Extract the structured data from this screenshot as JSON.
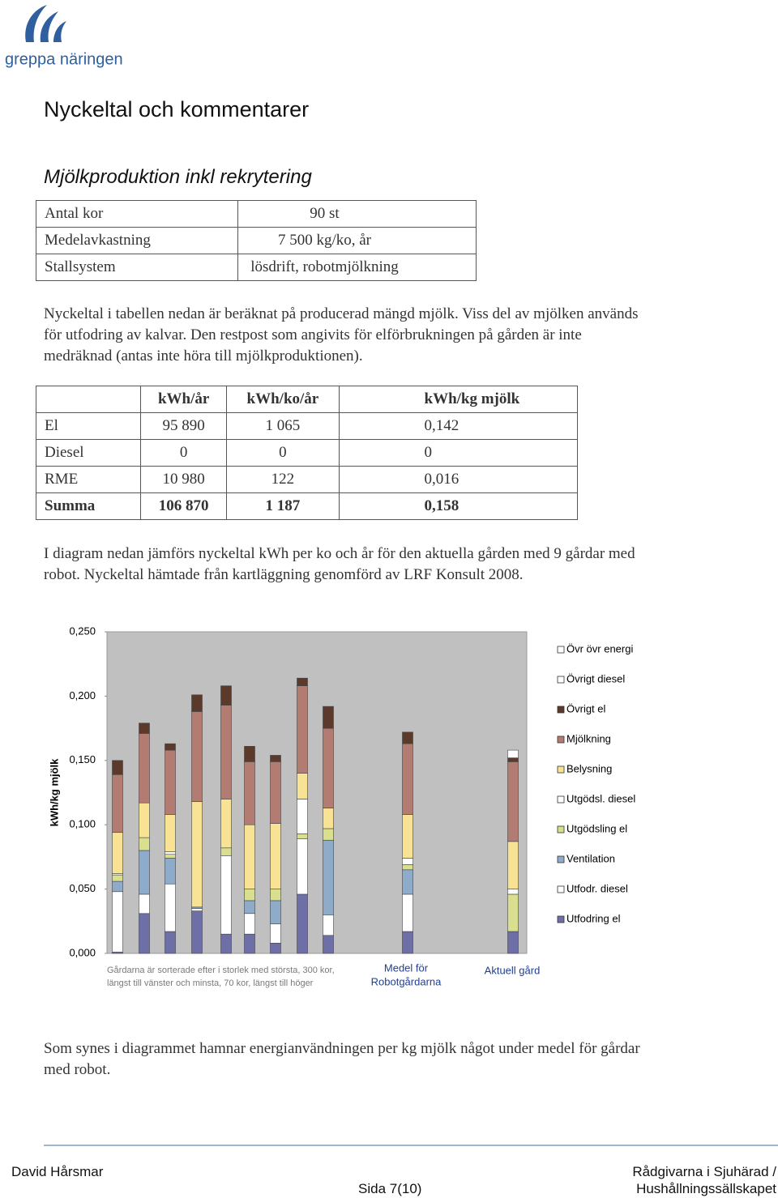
{
  "header": {
    "logo_text": "greppa näringen"
  },
  "title": "Nyckeltal och kommentarer",
  "subtitle": "Mjölkproduktion inkl rekrytering",
  "farm_table": {
    "rows": [
      [
        "Antal kor",
        "90 st"
      ],
      [
        "Medelavkastning",
        "7 500 kg/ko, år"
      ],
      [
        "Stallsystem",
        "lösdrift, robotmjölkning"
      ]
    ]
  },
  "paragraph_1": [
    "Nyckeltal i tabellen nedan är beräknat på producerad mängd mjölk. Viss del av mjölken används",
    "för utfodring av kalvar. Den restpost som angivits för elförbrukningen på gården är inte",
    "medräknad (antas inte höra till mjölkproduktionen)."
  ],
  "energy_table": {
    "header": [
      "kWh/år",
      "kWh/ko/år",
      "kWh/kg mjölk"
    ],
    "rows": [
      [
        "El",
        "95 890",
        "1 065",
        "0,142"
      ],
      [
        "Diesel",
        "0",
        "0",
        "0"
      ],
      [
        "RME",
        "10 980",
        "122",
        "0,016"
      ],
      [
        "Summa",
        "106 870",
        "1 187",
        "0,158"
      ]
    ]
  },
  "paragraph_2": [
    "I diagram nedan jämförs nyckeltal kWh per ko och år för den aktuella gården med 9 gårdar med",
    "robot. Nyckeltal hämtade från kartläggning genomförd av LRF Konsult 2008."
  ],
  "chart_data": {
    "type": "stacked_bar",
    "y_label": "kWh/kg mjölk",
    "categories": [
      null,
      null,
      null,
      null,
      null,
      null,
      null,
      null,
      null,
      null,
      null
    ],
    "ylim": [
      0,
      0.25
    ],
    "yticks": [
      {
        "value": 0,
        "label": "0,000"
      },
      {
        "value": 0.05,
        "label": "0,050"
      },
      {
        "value": 0.1,
        "label": "0,100"
      },
      {
        "value": 0.15,
        "label": "0,150"
      },
      {
        "value": 0.2,
        "label": "0,200"
      },
      {
        "value": 0.25,
        "label": "0,250"
      }
    ],
    "grid": false,
    "legend": "right",
    "series": [
      {
        "name": "Utfodring el",
        "color": "#6d6fa6",
        "values": [
          0.001,
          0.031,
          0.017,
          0.033,
          0.015,
          0.015,
          0.008,
          0.046,
          0.014,
          0.017,
          0.017
        ]
      },
      {
        "name": "Utfodr. diesel",
        "color": "#ffffff",
        "values": [
          0.047,
          0.015,
          0.037,
          0.002,
          0.061,
          0.016,
          0.015,
          0.043,
          0.016,
          0.029,
          0
        ]
      },
      {
        "name": "Ventilation",
        "color": "#8eabc9",
        "values": [
          0.008,
          0.034,
          0.02,
          0.001,
          0,
          0.01,
          0.018,
          0,
          0.058,
          0.019,
          0
        ]
      },
      {
        "name": "Utgödsling el",
        "color": "#d9df8e",
        "values": [
          0.005,
          0.01,
          0.003,
          0,
          0.006,
          0.009,
          0.009,
          0.004,
          0.009,
          0.004,
          0.029
        ]
      },
      {
        "name": "Utgödsl. diesel",
        "color": "#ffffff",
        "values": [
          0.001,
          0,
          0.002,
          0,
          0,
          0,
          0,
          0.027,
          0,
          0.005,
          0.004
        ]
      },
      {
        "name": "Belysning",
        "color": "#f8e394",
        "values": [
          0.032,
          0.027,
          0.029,
          0.082,
          0.038,
          0.05,
          0.051,
          0.02,
          0.016,
          0.034,
          0.037
        ]
      },
      {
        "name": "Mjölkning",
        "color": "#b27c72",
        "values": [
          0.045,
          0.054,
          0.05,
          0.07,
          0.073,
          0.049,
          0.048,
          0.068,
          0.062,
          0.055,
          0.062
        ]
      },
      {
        "name": "Övrigt el",
        "color": "#5b3a2c",
        "values": [
          0.011,
          0.008,
          0.005,
          0.013,
          0.015,
          0.012,
          0.005,
          0.006,
          0.017,
          0.009,
          0.003
        ]
      },
      {
        "name": "Övrigt diesel",
        "color": "#ffffff",
        "values": [
          0,
          0,
          0,
          0,
          0,
          0,
          0,
          0,
          0,
          0,
          0.006
        ]
      },
      {
        "name": "Övr övr energi",
        "color": "#ffffff",
        "values": [
          0,
          0,
          0,
          0,
          0,
          0,
          0,
          0,
          0,
          0,
          0
        ]
      }
    ],
    "annotations": [
      [
        "Gårdarna är sorterade efter i storlek med största, 300 kor,",
        "längst till vänster och minsta, 70  kor, längst till höger"
      ],
      [
        "Medel för",
        "Robotgårdarna"
      ],
      [
        "Aktuell gård"
      ]
    ]
  },
  "paragraph_3": [
    "Som synes i diagrammet hamnar energianvändningen per kg mjölk något under medel för gårdar",
    "med robot."
  ],
  "footer": {
    "author": "David Hårsmar",
    "page": "Sida 7(10)",
    "org": [
      "Rådgivarna i Sjuhärad /",
      "Hushållningssällskapet"
    ]
  }
}
